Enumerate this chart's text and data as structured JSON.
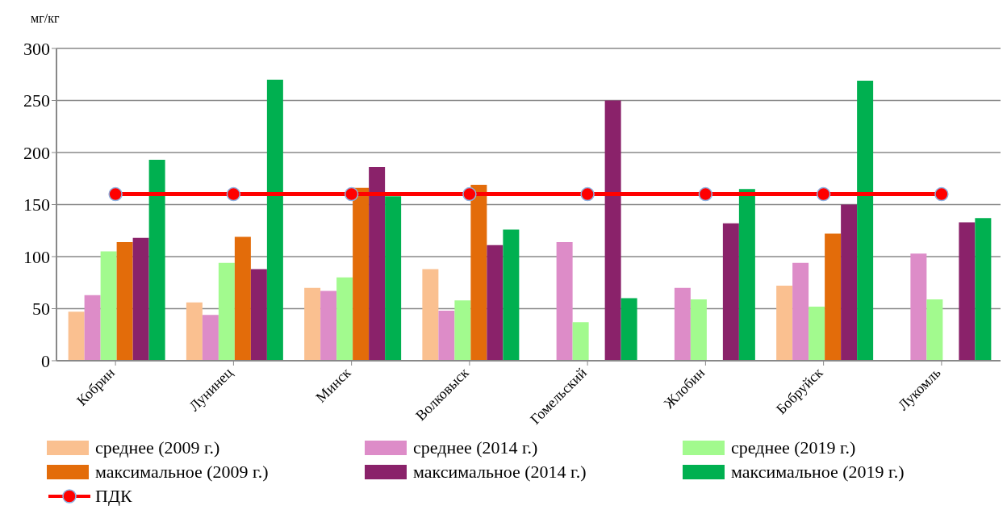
{
  "chart_data": {
    "type": "bar",
    "ylabel": "мг/кг",
    "categories": [
      "Кобрин",
      "Лунинец",
      "Минск",
      "Волковыск",
      "Гомельский",
      "Жлобин",
      "Бобруйск",
      "Лукомль"
    ],
    "series": [
      {
        "name": "среднее (2009 г.)",
        "color": "#fac090",
        "values": [
          47,
          56,
          70,
          88,
          null,
          null,
          72,
          null
        ]
      },
      {
        "name": "среднее (2014 г.)",
        "color": "#dd8cc8",
        "values": [
          63,
          44,
          67,
          48,
          114,
          70,
          94,
          103
        ]
      },
      {
        "name": "среднее (2019 г.)",
        "color": "#a2fa8e",
        "values": [
          105,
          94,
          80,
          58,
          37,
          59,
          52,
          59
        ]
      },
      {
        "name": "максимальное (2009 г.)",
        "color": "#e36c0a",
        "values": [
          114,
          119,
          166,
          169,
          null,
          null,
          122,
          null
        ]
      },
      {
        "name": "максимальное (2014 г.)",
        "color": "#8a226a",
        "values": [
          118,
          88,
          186,
          111,
          250,
          132,
          150,
          133
        ]
      },
      {
        "name": "максимальное (2019 г.)",
        "color": "#00b050",
        "values": [
          193,
          270,
          158,
          126,
          60,
          165,
          269,
          137
        ]
      },
      {
        "name": "ПДК",
        "type": "line",
        "color": "#ff0000",
        "marker": "circle",
        "values": [
          160,
          160,
          160,
          160,
          160,
          160,
          160,
          160
        ]
      }
    ],
    "ylim": [
      0,
      300
    ],
    "yticks": [
      0,
      50,
      100,
      150,
      200,
      250,
      300
    ],
    "grid": "y",
    "legend": "bottom"
  }
}
